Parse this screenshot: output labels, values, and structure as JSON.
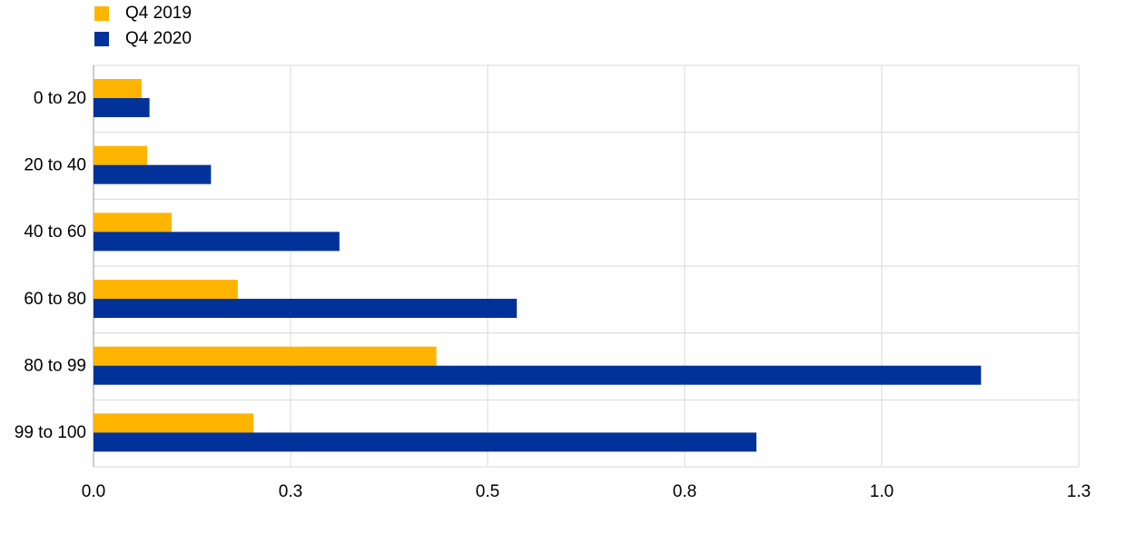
{
  "chart_data": {
    "type": "hbar",
    "categories": [
      "0 to 20",
      "20 to 40",
      "40 to 60",
      "60 to 80",
      "80 to 99",
      "99 to 100"
    ],
    "series": [
      {
        "name": "Q4 2019",
        "color": "#ffb400",
        "values": [
          0.061,
          0.068,
          0.099,
          0.183,
          0.435,
          0.203
        ]
      },
      {
        "name": "Q4 2020",
        "color": "#003299",
        "values": [
          0.071,
          0.149,
          0.312,
          0.537,
          1.126,
          0.841
        ]
      }
    ],
    "xlim": [
      0,
      1.25
    ],
    "xticks": [
      {
        "value": 0,
        "label": "0.0"
      },
      {
        "value": 0.25,
        "label": "0.3"
      },
      0.5,
      {
        "value": 0.75,
        "label": "0.8"
      },
      {
        "value": 1,
        "label": "1.0"
      },
      {
        "value": 1.25,
        "label": "1.3"
      }
    ],
    "grid": true,
    "legend": "top-left"
  }
}
